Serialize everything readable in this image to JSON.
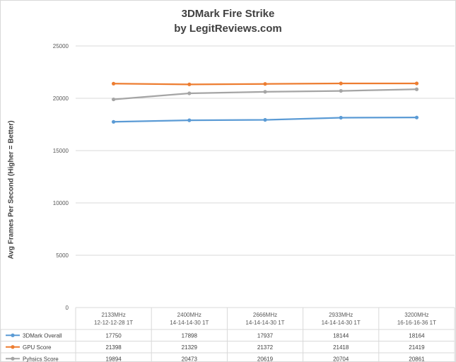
{
  "chart_data": {
    "type": "line",
    "title": "3DMark  Fire Strike",
    "subtitle": "by LegitReviews.com",
    "ylabel": "Avg Frames Per Second (Higher = Better)",
    "ylim": [
      0,
      25000
    ],
    "yticks": [
      0,
      5000,
      10000,
      15000,
      20000,
      25000
    ],
    "grid": true,
    "categories": [
      [
        "2133MHz",
        "12-12-12-28 1T"
      ],
      [
        "2400MHz",
        "14-14-14-30 1T"
      ],
      [
        "2666MHz",
        "14-14-14-30 1T"
      ],
      [
        "2933MHz",
        "14-14-14-30 1T"
      ],
      [
        "3200MHz",
        "16-16-16-36 1T"
      ]
    ],
    "series": [
      {
        "name": "3DMark Overall",
        "color": "#5b9bd5",
        "values": [
          17750,
          17898,
          17937,
          18144,
          18164
        ]
      },
      {
        "name": "GPU Score",
        "color": "#ed7d31",
        "values": [
          21398,
          21329,
          21372,
          21418,
          21419
        ]
      },
      {
        "name": "Pyhsics Score",
        "color": "#a5a5a5",
        "values": [
          19894,
          20473,
          20619,
          20704,
          20861
        ]
      }
    ],
    "legend": "data-table"
  }
}
